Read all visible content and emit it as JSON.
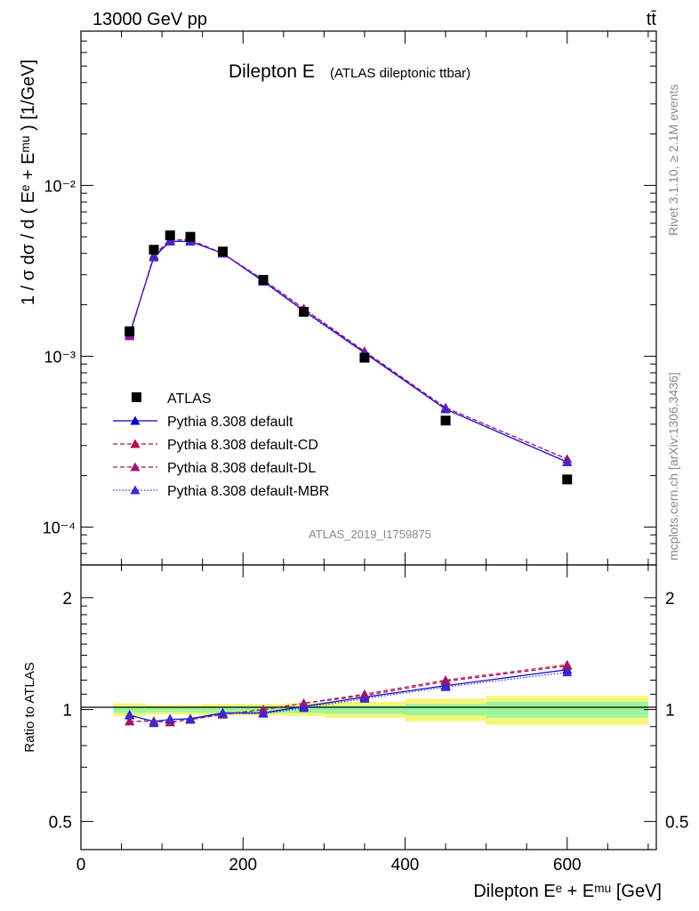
{
  "header": {
    "energy": "13000 GeV pp",
    "process": "tt̄"
  },
  "title": {
    "main": "Dilepton E",
    "sub": "(ATLAS dileptonic ttbar)"
  },
  "side": {
    "rivet": "Rivet 3.1.10, ≥ 2.1M events",
    "mcplots": "mcplots.cern.ch [arXiv:1306.3436]"
  },
  "analysis_id": "ATLAS_2019_I1759875",
  "colors": {
    "data": "#000000",
    "default": "#0000cc",
    "cd": "#b2103e",
    "dl": "#a0176e",
    "mbr": "#3a2ad0",
    "band_inner": "#9cf59c",
    "band_outer": "#f5f57a"
  },
  "chart_data": [
    {
      "type": "line",
      "scale": "log",
      "xlabel": "Dilepton Eᵉ + Eᵐᵘ [GeV]",
      "ylabel": "1 / σ dσ / d ( Eᵉ + Eᵐᵘ ) [1/GeV]",
      "xlim": [
        0,
        710
      ],
      "ylim": [
        6e-05,
        0.08
      ],
      "xticks": [
        0,
        200,
        400,
        600
      ],
      "yticks": [
        {
          "value": 0.01,
          "label": "10⁻²"
        },
        {
          "value": 0.001,
          "label": "10⁻³"
        },
        {
          "value": 0.0001,
          "label": "10⁻⁴"
        }
      ],
      "legend_position": "bottom-left",
      "x": [
        60,
        90,
        110,
        135,
        175,
        225,
        275,
        350,
        450,
        600
      ],
      "series": [
        {
          "name": "ATLAS",
          "key": "data",
          "marker": "square",
          "values": [
            0.0014,
            0.0042,
            0.0051,
            0.005,
            0.0041,
            0.0028,
            0.00182,
            0.00098,
            0.00042,
            0.00019
          ]
        },
        {
          "name": "Pythia 8.308 default",
          "key": "default",
          "marker": "triangle",
          "line": "solid",
          "values": [
            0.00135,
            0.0038,
            0.0047,
            0.0047,
            0.004,
            0.00275,
            0.00185,
            0.00105,
            0.00049,
            0.00024
          ]
        },
        {
          "name": "Pythia 8.308 default-CD",
          "key": "cd",
          "marker": "triangle",
          "line": "dashed",
          "values": [
            0.00132,
            0.0039,
            0.0048,
            0.0048,
            0.004,
            0.0028,
            0.0019,
            0.00107,
            0.0005,
            0.00025
          ]
        },
        {
          "name": "Pythia 8.308 default-DL",
          "key": "dl",
          "marker": "triangle",
          "line": "dashed",
          "values": [
            0.00131,
            0.0039,
            0.0048,
            0.0048,
            0.004,
            0.0028,
            0.0019,
            0.00106,
            0.0005,
            0.00025
          ]
        },
        {
          "name": "Pythia 8.308 default-MBR",
          "key": "mbr",
          "marker": "triangle",
          "line": "dotted",
          "values": [
            0.00136,
            0.0038,
            0.0047,
            0.0047,
            0.004,
            0.00273,
            0.00183,
            0.00104,
            0.00049,
            0.00024
          ]
        }
      ]
    },
    {
      "type": "line",
      "scale": "log",
      "ylabel": "Ratio to ATLAS",
      "xlim": [
        0,
        710
      ],
      "ylim": [
        0.42,
        2.45
      ],
      "yticks": [
        {
          "value": 0.5,
          "label": "0.5"
        },
        {
          "value": 1,
          "label": "1"
        },
        {
          "value": 2,
          "label": "2"
        }
      ],
      "bands": {
        "edges": [
          40,
          80,
          100,
          120,
          150,
          200,
          250,
          300,
          400,
          500,
          700
        ],
        "inner": [
          0.02,
          0.015,
          0.015,
          0.015,
          0.02,
          0.02,
          0.02,
          0.025,
          0.035,
          0.05
        ],
        "outer": [
          0.04,
          0.03,
          0.03,
          0.03,
          0.035,
          0.035,
          0.04,
          0.05,
          0.07,
          0.09
        ]
      },
      "x": [
        60,
        90,
        110,
        135,
        175,
        225,
        275,
        350,
        450,
        600
      ],
      "series": [
        {
          "name": "Pythia 8.308 default",
          "key": "default",
          "values": [
            0.965,
            0.93,
            0.94,
            0.945,
            0.98,
            0.98,
            1.02,
            1.08,
            1.16,
            1.28
          ]
        },
        {
          "name": "Pythia 8.308 default-CD",
          "key": "cd",
          "values": [
            0.93,
            0.93,
            0.925,
            0.94,
            0.97,
            1.0,
            1.04,
            1.1,
            1.2,
            1.32
          ]
        },
        {
          "name": "Pythia 8.308 default-DL",
          "key": "dl",
          "values": [
            0.93,
            0.93,
            0.925,
            0.94,
            0.97,
            1.0,
            1.04,
            1.09,
            1.19,
            1.31
          ]
        },
        {
          "name": "Pythia 8.308 default-MBR",
          "key": "mbr",
          "values": [
            0.97,
            0.92,
            0.945,
            0.94,
            0.975,
            0.975,
            1.01,
            1.07,
            1.15,
            1.26
          ]
        }
      ]
    }
  ]
}
